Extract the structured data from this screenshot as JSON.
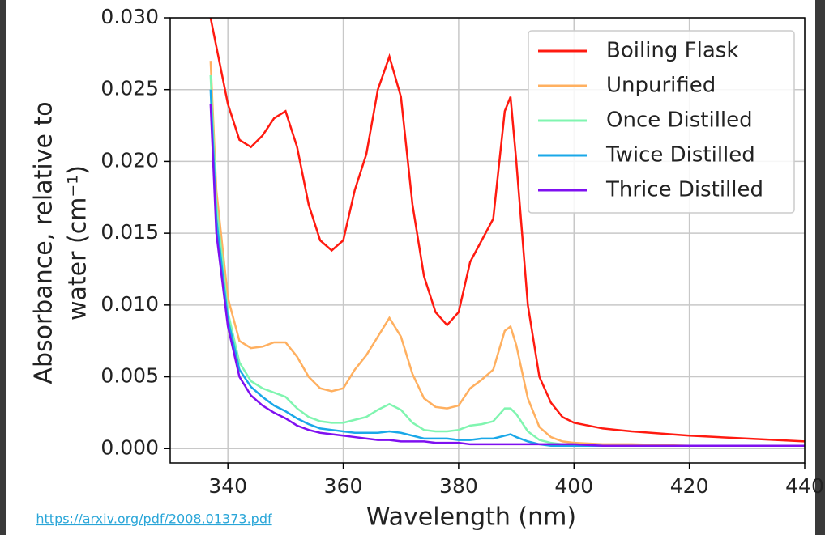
{
  "chart_data": {
    "type": "line",
    "xlabel": "Wavelength (nm)",
    "ylabel": [
      "Absorbance, relative to",
      "water (cm⁻¹)"
    ],
    "source": "https://arxiv.org/pdf/2008.01373.pdf",
    "x": [
      337,
      338,
      340,
      342,
      344,
      346,
      348,
      350,
      352,
      354,
      356,
      358,
      360,
      362,
      364,
      366,
      368,
      370,
      372,
      374,
      376,
      378,
      380,
      382,
      384,
      386,
      388,
      389,
      390,
      392,
      394,
      396,
      398,
      400,
      405,
      410,
      420,
      430,
      440
    ],
    "series": [
      {
        "name": "Boiling Flask",
        "color": "#ff1a10",
        "values": [
          0.03,
          0.028,
          0.024,
          0.0215,
          0.021,
          0.0218,
          0.023,
          0.0235,
          0.021,
          0.017,
          0.0145,
          0.0138,
          0.0145,
          0.018,
          0.0205,
          0.025,
          0.0273,
          0.0245,
          0.017,
          0.012,
          0.0095,
          0.0086,
          0.0095,
          0.013,
          0.0145,
          0.016,
          0.0235,
          0.0245,
          0.02,
          0.01,
          0.005,
          0.0032,
          0.0022,
          0.0018,
          0.0014,
          0.0012,
          0.0009,
          0.0007,
          0.0005
        ]
      },
      {
        "name": "Unpurified",
        "color": "#ffb060",
        "values": [
          0.027,
          0.018,
          0.0105,
          0.0075,
          0.007,
          0.0071,
          0.0074,
          0.0074,
          0.0064,
          0.005,
          0.0042,
          0.004,
          0.0042,
          0.0055,
          0.0065,
          0.0078,
          0.0091,
          0.0078,
          0.0052,
          0.0035,
          0.0029,
          0.0028,
          0.003,
          0.0042,
          0.0048,
          0.0055,
          0.0082,
          0.0085,
          0.0072,
          0.0035,
          0.0015,
          0.0008,
          0.0005,
          0.0004,
          0.0003,
          0.0003,
          0.0002,
          0.0002,
          0.0002
        ]
      },
      {
        "name": "Once Distilled",
        "color": "#80f5b0",
        "values": [
          0.026,
          0.017,
          0.0095,
          0.006,
          0.0047,
          0.0042,
          0.0039,
          0.0036,
          0.0028,
          0.0022,
          0.0019,
          0.0018,
          0.0018,
          0.002,
          0.0022,
          0.0027,
          0.0031,
          0.0027,
          0.0018,
          0.0013,
          0.0012,
          0.0012,
          0.0013,
          0.0016,
          0.0017,
          0.0019,
          0.0028,
          0.0028,
          0.0024,
          0.0012,
          0.0006,
          0.0004,
          0.0003,
          0.0003,
          0.0002,
          0.0002,
          0.0002,
          0.0002,
          0.0002
        ]
      },
      {
        "name": "Twice Distilled",
        "color": "#1aa8e8",
        "values": [
          0.025,
          0.016,
          0.009,
          0.0055,
          0.0043,
          0.0036,
          0.003,
          0.0026,
          0.0021,
          0.0017,
          0.0014,
          0.0013,
          0.0012,
          0.0011,
          0.0011,
          0.0011,
          0.0012,
          0.0011,
          0.0009,
          0.0007,
          0.0007,
          0.0007,
          0.0006,
          0.0006,
          0.0007,
          0.0007,
          0.0009,
          0.001,
          0.0008,
          0.0005,
          0.0003,
          0.0002,
          0.0002,
          0.0002,
          0.0002,
          0.0002,
          0.0002,
          0.0002,
          0.0002
        ]
      },
      {
        "name": "Thrice Distilled",
        "color": "#7f10f0",
        "values": [
          0.024,
          0.015,
          0.0085,
          0.005,
          0.0037,
          0.003,
          0.0025,
          0.0021,
          0.0016,
          0.0013,
          0.0011,
          0.001,
          0.0009,
          0.0008,
          0.0007,
          0.0006,
          0.0006,
          0.0005,
          0.0005,
          0.0005,
          0.0004,
          0.0004,
          0.0004,
          0.0003,
          0.0003,
          0.0003,
          0.0003,
          0.0003,
          0.0003,
          0.0003,
          0.0003,
          0.0003,
          0.0003,
          0.0003,
          0.0002,
          0.0002,
          0.0002,
          0.0002,
          0.0002
        ]
      }
    ],
    "xlim": [
      330,
      440
    ],
    "ylim": [
      -0.001,
      0.03
    ],
    "xticks": [
      340,
      360,
      380,
      400,
      420,
      440
    ],
    "yticks": [
      {
        "value": 0.03,
        "label": "0.030"
      },
      0.025,
      {
        "value": 0.02,
        "label": "0.020"
      },
      0.015,
      {
        "value": 0.01,
        "label": "0.010"
      },
      0.005,
      {
        "value": 0,
        "label": "0.000"
      }
    ],
    "grid": true,
    "legend": "upper right"
  }
}
